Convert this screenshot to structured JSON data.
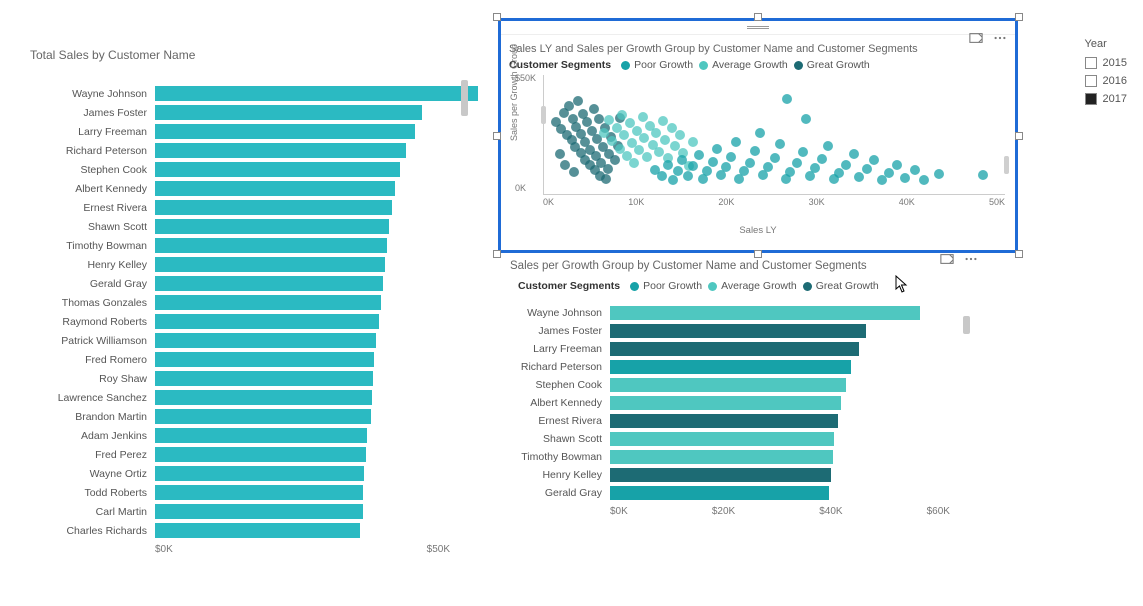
{
  "colors": {
    "poor_growth": "#17a2a8",
    "average_growth": "#4fc7c0",
    "great_growth": "#1d6b74",
    "bar": "#2bbac2",
    "axis": "#cccccc",
    "grid_text": "#777777",
    "selection_border": "#1F6BD6"
  },
  "left_chart": {
    "type": "bar",
    "title": "Total Sales by Customer Name",
    "xlim": [
      0,
      50000
    ],
    "xticks": [
      "$0K",
      "$50K"
    ],
    "bar_color": "#2bbac2",
    "label_fontsize": 10.5,
    "title_fontsize": 12,
    "rows": [
      {
        "name": "Wayne Johnson",
        "value": 54700
      },
      {
        "name": "James Foster",
        "value": 45200
      },
      {
        "name": "Larry Freeman",
        "value": 44000
      },
      {
        "name": "Richard Peterson",
        "value": 42600
      },
      {
        "name": "Stephen Cook",
        "value": 41600
      },
      {
        "name": "Albert Kennedy",
        "value": 40700
      },
      {
        "name": "Ernest Rivera",
        "value": 40200
      },
      {
        "name": "Shawn Scott",
        "value": 39600
      },
      {
        "name": "Timothy Bowman",
        "value": 39300
      },
      {
        "name": "Henry Kelley",
        "value": 39000
      },
      {
        "name": "Gerald Gray",
        "value": 38700
      },
      {
        "name": "Thomas Gonzales",
        "value": 38300
      },
      {
        "name": "Raymond Roberts",
        "value": 38000
      },
      {
        "name": "Patrick Williamson",
        "value": 37500
      },
      {
        "name": "Fred Romero",
        "value": 37200
      },
      {
        "name": "Roy Shaw",
        "value": 37000
      },
      {
        "name": "Lawrence Sanchez",
        "value": 36700
      },
      {
        "name": "Brandon Martin",
        "value": 36600
      },
      {
        "name": "Adam Jenkins",
        "value": 36000
      },
      {
        "name": "Fred Perez",
        "value": 35700
      },
      {
        "name": "Wayne Ortiz",
        "value": 35400
      },
      {
        "name": "Todd Roberts",
        "value": 35200
      },
      {
        "name": "Carl Martin",
        "value": 35200
      },
      {
        "name": "Charles Richards",
        "value": 34800
      }
    ]
  },
  "scatter_chart": {
    "type": "scatter",
    "title": "Sales LY and Sales per Growth Group by Customer Name and Customer Segments",
    "legend_title": "Customer Segments",
    "legend_items": [
      {
        "label": "Poor Growth",
        "color": "#17a2a8"
      },
      {
        "label": "Average Growth",
        "color": "#4fc7c0"
      },
      {
        "label": "Great Growth",
        "color": "#1d6b74"
      }
    ],
    "xlabel": "Sales LY",
    "ylabel": "Sales per Growth Group",
    "xlim": [
      0,
      50000
    ],
    "ylim": [
      0,
      60000
    ],
    "xticks": [
      "0K",
      "10K",
      "20K",
      "30K",
      "40K",
      "50K"
    ],
    "yticks": [
      "0K",
      "$50K"
    ],
    "marker_radius": 5,
    "marker_opacity": 0.75,
    "points": [
      {
        "x": 1300,
        "y": 36500,
        "seg": "great"
      },
      {
        "x": 1800,
        "y": 32800,
        "seg": "great"
      },
      {
        "x": 2200,
        "y": 40700,
        "seg": "great"
      },
      {
        "x": 2500,
        "y": 30000,
        "seg": "great"
      },
      {
        "x": 2700,
        "y": 44500,
        "seg": "great"
      },
      {
        "x": 3000,
        "y": 27400,
        "seg": "great"
      },
      {
        "x": 3100,
        "y": 37900,
        "seg": "great"
      },
      {
        "x": 3400,
        "y": 23600,
        "seg": "great"
      },
      {
        "x": 3500,
        "y": 33900,
        "seg": "great"
      },
      {
        "x": 3700,
        "y": 46800,
        "seg": "great"
      },
      {
        "x": 4000,
        "y": 20800,
        "seg": "great"
      },
      {
        "x": 4000,
        "y": 30400,
        "seg": "great"
      },
      {
        "x": 4200,
        "y": 40500,
        "seg": "great"
      },
      {
        "x": 4400,
        "y": 17300,
        "seg": "great"
      },
      {
        "x": 4500,
        "y": 26200,
        "seg": "great"
      },
      {
        "x": 4700,
        "y": 36100,
        "seg": "great"
      },
      {
        "x": 5000,
        "y": 14800,
        "seg": "great"
      },
      {
        "x": 5000,
        "y": 22400,
        "seg": "great"
      },
      {
        "x": 5200,
        "y": 31800,
        "seg": "great"
      },
      {
        "x": 5400,
        "y": 43000,
        "seg": "great"
      },
      {
        "x": 5500,
        "y": 11900,
        "seg": "great"
      },
      {
        "x": 5600,
        "y": 19300,
        "seg": "great"
      },
      {
        "x": 5800,
        "y": 27800,
        "seg": "great"
      },
      {
        "x": 6000,
        "y": 37900,
        "seg": "great"
      },
      {
        "x": 6100,
        "y": 9200,
        "seg": "great"
      },
      {
        "x": 6200,
        "y": 15700,
        "seg": "great"
      },
      {
        "x": 6400,
        "y": 23700,
        "seg": "great"
      },
      {
        "x": 6600,
        "y": 33100,
        "seg": "great"
      },
      {
        "x": 6900,
        "y": 12700,
        "seg": "great"
      },
      {
        "x": 7000,
        "y": 20000,
        "seg": "great"
      },
      {
        "x": 7300,
        "y": 28600,
        "seg": "great"
      },
      {
        "x": 7700,
        "y": 17100,
        "seg": "great"
      },
      {
        "x": 8000,
        "y": 24300,
        "seg": "great"
      },
      {
        "x": 1700,
        "y": 20000,
        "seg": "great"
      },
      {
        "x": 2300,
        "y": 14500,
        "seg": "great"
      },
      {
        "x": 3200,
        "y": 11000,
        "seg": "great"
      },
      {
        "x": 6700,
        "y": 7800,
        "seg": "great"
      },
      {
        "x": 8200,
        "y": 38500,
        "seg": "great"
      },
      {
        "x": 6500,
        "y": 31000,
        "seg": "average"
      },
      {
        "x": 7100,
        "y": 37200,
        "seg": "average"
      },
      {
        "x": 7400,
        "y": 26800,
        "seg": "average"
      },
      {
        "x": 7900,
        "y": 33500,
        "seg": "average"
      },
      {
        "x": 8200,
        "y": 22700,
        "seg": "average"
      },
      {
        "x": 8500,
        "y": 40000,
        "seg": "average"
      },
      {
        "x": 8700,
        "y": 29800,
        "seg": "average"
      },
      {
        "x": 9000,
        "y": 19100,
        "seg": "average"
      },
      {
        "x": 9300,
        "y": 35600,
        "seg": "average"
      },
      {
        "x": 9500,
        "y": 25600,
        "seg": "average"
      },
      {
        "x": 9800,
        "y": 15800,
        "seg": "average"
      },
      {
        "x": 10100,
        "y": 31800,
        "seg": "average"
      },
      {
        "x": 10300,
        "y": 22000,
        "seg": "average"
      },
      {
        "x": 10700,
        "y": 38600,
        "seg": "average"
      },
      {
        "x": 10900,
        "y": 28000,
        "seg": "average"
      },
      {
        "x": 11200,
        "y": 18900,
        "seg": "average"
      },
      {
        "x": 11500,
        "y": 34400,
        "seg": "average"
      },
      {
        "x": 11800,
        "y": 24500,
        "seg": "average"
      },
      {
        "x": 12200,
        "y": 30900,
        "seg": "average"
      },
      {
        "x": 12500,
        "y": 21000,
        "seg": "average"
      },
      {
        "x": 12900,
        "y": 37000,
        "seg": "average"
      },
      {
        "x": 13100,
        "y": 27400,
        "seg": "average"
      },
      {
        "x": 13500,
        "y": 18000,
        "seg": "average"
      },
      {
        "x": 13900,
        "y": 33500,
        "seg": "average"
      },
      {
        "x": 14200,
        "y": 24000,
        "seg": "average"
      },
      {
        "x": 14700,
        "y": 30000,
        "seg": "average"
      },
      {
        "x": 15100,
        "y": 20700,
        "seg": "average"
      },
      {
        "x": 15700,
        "y": 14100,
        "seg": "average"
      },
      {
        "x": 16200,
        "y": 26300,
        "seg": "average"
      },
      {
        "x": 12000,
        "y": 12200,
        "seg": "poor"
      },
      {
        "x": 12800,
        "y": 9200,
        "seg": "poor"
      },
      {
        "x": 13400,
        "y": 14500,
        "seg": "poor"
      },
      {
        "x": 14000,
        "y": 7100,
        "seg": "poor"
      },
      {
        "x": 14500,
        "y": 11800,
        "seg": "poor"
      },
      {
        "x": 15000,
        "y": 17200,
        "seg": "poor"
      },
      {
        "x": 15600,
        "y": 9000,
        "seg": "poor"
      },
      {
        "x": 16200,
        "y": 13900,
        "seg": "poor"
      },
      {
        "x": 16800,
        "y": 19600,
        "seg": "poor"
      },
      {
        "x": 17200,
        "y": 7400,
        "seg": "poor"
      },
      {
        "x": 17700,
        "y": 11700,
        "seg": "poor"
      },
      {
        "x": 18300,
        "y": 16100,
        "seg": "poor"
      },
      {
        "x": 18800,
        "y": 22800,
        "seg": "poor"
      },
      {
        "x": 19200,
        "y": 9500,
        "seg": "poor"
      },
      {
        "x": 19700,
        "y": 13600,
        "seg": "poor"
      },
      {
        "x": 20300,
        "y": 18600,
        "seg": "poor"
      },
      {
        "x": 20800,
        "y": 26100,
        "seg": "poor"
      },
      {
        "x": 21200,
        "y": 7700,
        "seg": "poor"
      },
      {
        "x": 21700,
        "y": 11600,
        "seg": "poor"
      },
      {
        "x": 22300,
        "y": 15800,
        "seg": "poor"
      },
      {
        "x": 22900,
        "y": 21800,
        "seg": "poor"
      },
      {
        "x": 23400,
        "y": 30700,
        "seg": "poor"
      },
      {
        "x": 23800,
        "y": 9500,
        "seg": "poor"
      },
      {
        "x": 24300,
        "y": 13500,
        "seg": "poor"
      },
      {
        "x": 25000,
        "y": 18200,
        "seg": "poor"
      },
      {
        "x": 25600,
        "y": 25100,
        "seg": "poor"
      },
      {
        "x": 26200,
        "y": 7700,
        "seg": "poor"
      },
      {
        "x": 26700,
        "y": 11300,
        "seg": "poor"
      },
      {
        "x": 27400,
        "y": 15500,
        "seg": "poor"
      },
      {
        "x": 28100,
        "y": 21100,
        "seg": "poor"
      },
      {
        "x": 28400,
        "y": 38000,
        "seg": "poor"
      },
      {
        "x": 28800,
        "y": 9100,
        "seg": "poor"
      },
      {
        "x": 29400,
        "y": 13000,
        "seg": "poor"
      },
      {
        "x": 30100,
        "y": 17800,
        "seg": "poor"
      },
      {
        "x": 30800,
        "y": 24300,
        "seg": "poor"
      },
      {
        "x": 31400,
        "y": 7500,
        "seg": "poor"
      },
      {
        "x": 32000,
        "y": 10800,
        "seg": "poor"
      },
      {
        "x": 32800,
        "y": 14800,
        "seg": "poor"
      },
      {
        "x": 33600,
        "y": 20400,
        "seg": "poor"
      },
      {
        "x": 34200,
        "y": 8700,
        "seg": "poor"
      },
      {
        "x": 35000,
        "y": 12400,
        "seg": "poor"
      },
      {
        "x": 35800,
        "y": 17200,
        "seg": "poor"
      },
      {
        "x": 36700,
        "y": 7200,
        "seg": "poor"
      },
      {
        "x": 37400,
        "y": 10400,
        "seg": "poor"
      },
      {
        "x": 38300,
        "y": 14400,
        "seg": "poor"
      },
      {
        "x": 39200,
        "y": 8300,
        "seg": "poor"
      },
      {
        "x": 40200,
        "y": 11900,
        "seg": "poor"
      },
      {
        "x": 41200,
        "y": 7000,
        "seg": "poor"
      },
      {
        "x": 42800,
        "y": 9900,
        "seg": "poor"
      },
      {
        "x": 47600,
        "y": 9800,
        "seg": "poor"
      },
      {
        "x": 26400,
        "y": 47700,
        "seg": "poor"
      }
    ]
  },
  "group_chart": {
    "type": "bar",
    "title": "Sales per Growth Group by Customer Name and Customer Segments",
    "legend_title": "Customer Segments",
    "legend_items": [
      {
        "label": "Poor Growth",
        "color": "#17a2a8"
      },
      {
        "label": "Average Growth",
        "color": "#4fc7c0"
      },
      {
        "label": "Great Growth",
        "color": "#1d6b74"
      }
    ],
    "xlim": [
      0,
      60000
    ],
    "xticks": [
      "$0K",
      "$20K",
      "$40K",
      "$60K"
    ],
    "rows": [
      {
        "name": "Wayne Johnson",
        "value": 54700,
        "seg": "average"
      },
      {
        "name": "James Foster",
        "value": 45200,
        "seg": "great"
      },
      {
        "name": "Larry Freeman",
        "value": 44000,
        "seg": "great"
      },
      {
        "name": "Richard Peterson",
        "value": 42600,
        "seg": "poor"
      },
      {
        "name": "Stephen Cook",
        "value": 41600,
        "seg": "average"
      },
      {
        "name": "Albert Kennedy",
        "value": 40700,
        "seg": "average"
      },
      {
        "name": "Ernest Rivera",
        "value": 40200,
        "seg": "great"
      },
      {
        "name": "Shawn Scott",
        "value": 39600,
        "seg": "average"
      },
      {
        "name": "Timothy Bowman",
        "value": 39300,
        "seg": "average"
      },
      {
        "name": "Henry Kelley",
        "value": 39000,
        "seg": "great"
      },
      {
        "name": "Gerald Gray",
        "value": 38700,
        "seg": "poor"
      }
    ]
  },
  "year_slicer": {
    "title": "Year",
    "options": [
      {
        "label": "2015",
        "checked": false
      },
      {
        "label": "2016",
        "checked": false
      },
      {
        "label": "2017",
        "checked": true
      }
    ]
  }
}
